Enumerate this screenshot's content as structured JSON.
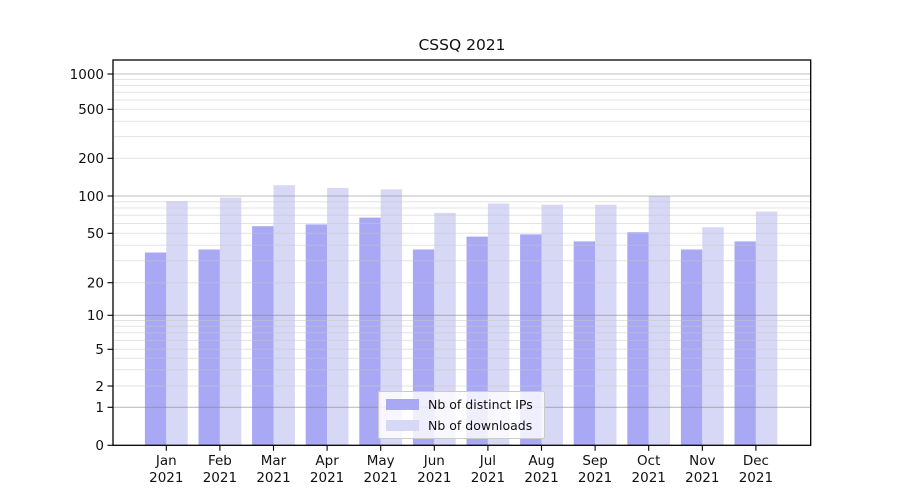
{
  "chart_data": {
    "type": "bar",
    "title": "CSSQ 2021",
    "categories": [
      "Jan",
      "Feb",
      "Mar",
      "Apr",
      "May",
      "Jun",
      "Jul",
      "Aug",
      "Sep",
      "Oct",
      "Nov",
      "Dec"
    ],
    "category_year": "2021",
    "series": [
      {
        "name": "Nb of distinct IPs",
        "color": "#a8a8f5",
        "values": [
          35,
          37,
          57,
          59,
          67,
          37,
          47,
          49,
          43,
          51,
          37,
          43
        ]
      },
      {
        "name": "Nb of downloads",
        "color": "#d7d7f6",
        "values": [
          91,
          97,
          122,
          116,
          113,
          73,
          87,
          85,
          85,
          100,
          56,
          75
        ]
      }
    ],
    "y_ticks": [
      1000,
      500,
      200,
      100,
      50,
      20,
      10,
      5,
      2,
      1,
      0
    ],
    "y_scale": "log-like (symlog, linear below 1)",
    "ylim": [
      0,
      1000
    ],
    "xlabel": "",
    "ylabel": "",
    "grid": true,
    "legend_position": "bottom-center"
  }
}
